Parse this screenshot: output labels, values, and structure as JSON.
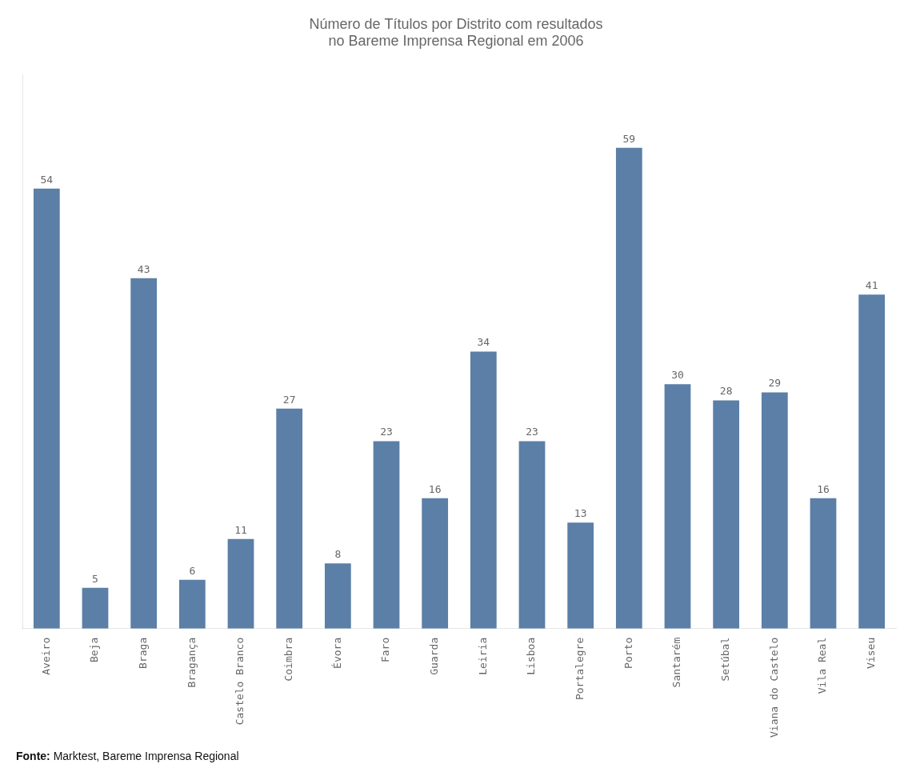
{
  "chart_data": {
    "type": "bar",
    "title": [
      "Número de Títulos por Distrito com resultados",
      "no Bareme Imprensa Regional em 2006"
    ],
    "categories": [
      "Aveiro",
      "Beja",
      "Braga",
      "Bragança",
      "Castelo Branco",
      "Coimbra",
      "Évora",
      "Faro",
      "Guarda",
      "Leiria",
      "Lisboa",
      "Portalegre",
      "Porto",
      "Santarém",
      "Setúbal",
      "Viana do Castelo",
      "Vila Real",
      "Viseu"
    ],
    "values": [
      54,
      5,
      43,
      6,
      11,
      27,
      8,
      23,
      16,
      34,
      23,
      13,
      59,
      30,
      28,
      29,
      16,
      41
    ],
    "color": "#5b7fa6",
    "ylim": [
      0,
      68
    ],
    "grid": false,
    "data_labels": true,
    "tick_labels": "x",
    "annotations": [
      "Fonte:",
      "Marktest, Bareme Imprensa Regional"
    ]
  }
}
